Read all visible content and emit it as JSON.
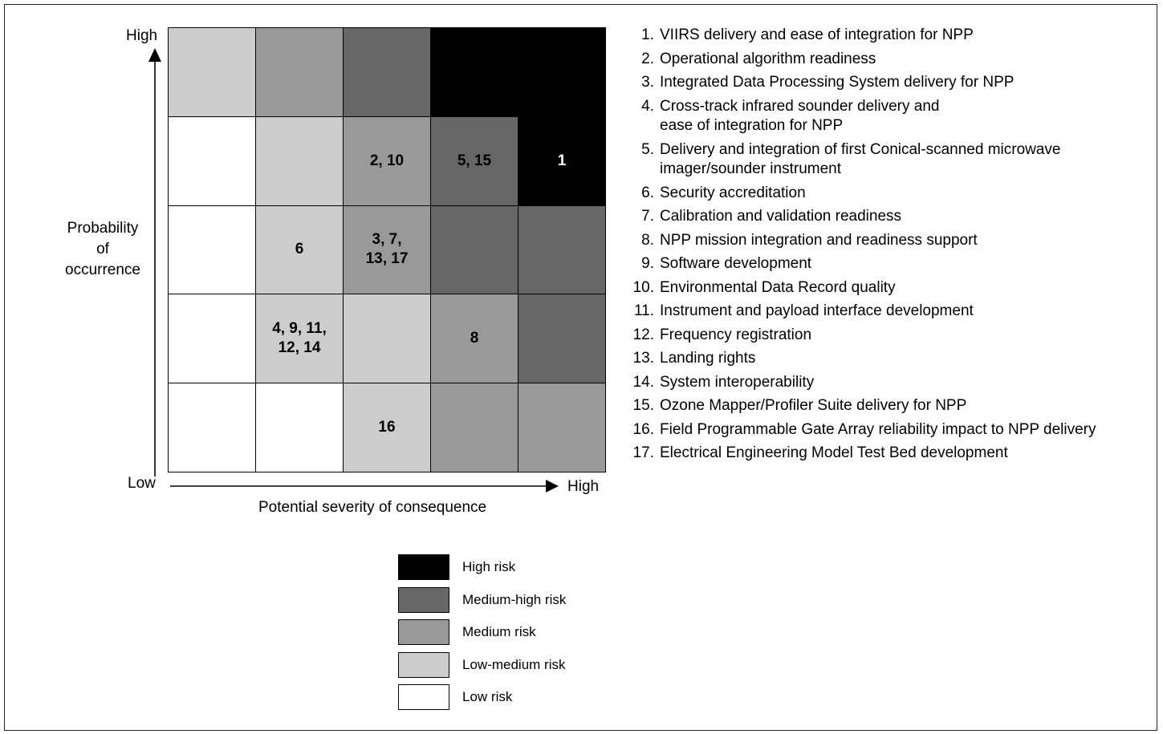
{
  "colors": {
    "high": "#000000",
    "medium_high": "#666666",
    "medium": "#999999",
    "low_medium": "#cccccc",
    "low": "#ffffff"
  },
  "axes": {
    "y_high": "High",
    "x_low": "Low",
    "x_high": "High",
    "y_title": "Probability\nof\noccurrence",
    "x_title": "Potential severity of consequence"
  },
  "matrix": {
    "rows": [
      [
        {
          "level": "low_medium",
          "label": ""
        },
        {
          "level": "medium",
          "label": ""
        },
        {
          "level": "medium_high",
          "label": ""
        },
        {
          "level": "high",
          "label": ""
        },
        {
          "level": "high",
          "label": ""
        }
      ],
      [
        {
          "level": "low",
          "label": ""
        },
        {
          "level": "low_medium",
          "label": ""
        },
        {
          "level": "medium",
          "label": "2, 10"
        },
        {
          "level": "medium_high",
          "label": "5, 15"
        },
        {
          "level": "high",
          "label": "1"
        }
      ],
      [
        {
          "level": "low",
          "label": ""
        },
        {
          "level": "low_medium",
          "label": "6"
        },
        {
          "level": "medium",
          "label": "3, 7,\n13, 17"
        },
        {
          "level": "medium_high",
          "label": ""
        },
        {
          "level": "medium_high",
          "label": ""
        }
      ],
      [
        {
          "level": "low",
          "label": ""
        },
        {
          "level": "low_medium",
          "label": "4, 9, 11,\n12, 14"
        },
        {
          "level": "low_medium",
          "label": ""
        },
        {
          "level": "medium",
          "label": "8"
        },
        {
          "level": "medium_high",
          "label": ""
        }
      ],
      [
        {
          "level": "low",
          "label": ""
        },
        {
          "level": "low",
          "label": ""
        },
        {
          "level": "low_medium",
          "label": "16"
        },
        {
          "level": "medium",
          "label": ""
        },
        {
          "level": "medium",
          "label": ""
        }
      ]
    ]
  },
  "risks": [
    {
      "num": "1.",
      "text": "VIIRS delivery and ease of integration for NPP"
    },
    {
      "num": "2.",
      "text": "Operational algorithm readiness"
    },
    {
      "num": "3.",
      "text": "Integrated Data Processing System delivery for NPP"
    },
    {
      "num": "4.",
      "text": "Cross-track infrared sounder delivery and\nease of integration for NPP"
    },
    {
      "num": "5.",
      "text": "Delivery and integration of first Conical-scanned microwave\nimager/sounder instrument"
    },
    {
      "num": "6.",
      "text": "Security accreditation"
    },
    {
      "num": "7.",
      "text": "Calibration and validation readiness"
    },
    {
      "num": "8.",
      "text": "NPP mission integration and readiness support"
    },
    {
      "num": "9.",
      "text": "Software development"
    },
    {
      "num": "10.",
      "text": "Environmental Data Record quality"
    },
    {
      "num": "11.",
      "text": "Instrument and payload interface development"
    },
    {
      "num": "12.",
      "text": "Frequency registration"
    },
    {
      "num": "13.",
      "text": "Landing rights"
    },
    {
      "num": "14.",
      "text": "System interoperability"
    },
    {
      "num": "15.",
      "text": "Ozone Mapper/Profiler Suite delivery for NPP"
    },
    {
      "num": "16.",
      "text": "Field Programmable Gate Array reliability impact to NPP delivery"
    },
    {
      "num": "17.",
      "text": "Electrical Engineering Model Test Bed development"
    }
  ],
  "legend": [
    {
      "level": "high",
      "label": "High risk"
    },
    {
      "level": "medium_high",
      "label": "Medium-high risk"
    },
    {
      "level": "medium",
      "label": "Medium risk"
    },
    {
      "level": "low_medium",
      "label": "Low-medium risk"
    },
    {
      "level": "low",
      "label": "Low risk"
    }
  ]
}
